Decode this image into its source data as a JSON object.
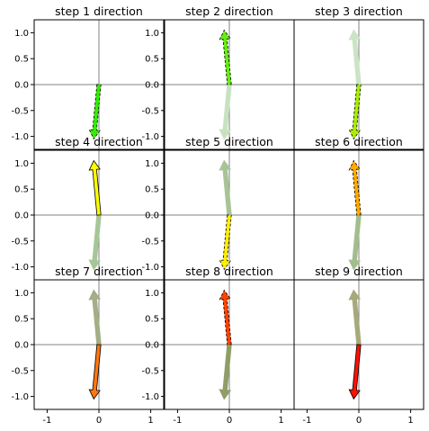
{
  "figure": {
    "background": "#ffffff",
    "grid": "3x3",
    "axis_line_color": "#808080",
    "frame_color": "#000000"
  },
  "chart_data": [
    {
      "type": "quiver",
      "title": "step 1 direction",
      "xlim": [
        -1.25,
        1.25
      ],
      "ylim": [
        -1.25,
        1.25
      ],
      "x_ticks": [],
      "y_ticks": [
        "-1.0",
        "-0.5",
        "0.0",
        "0.5",
        "1.0"
      ],
      "arrows": [
        {
          "role": "current",
          "x0": 0,
          "y0": 0,
          "dx": -0.1,
          "dy": -1.05,
          "color": "#33ee00",
          "edge_dashed": true
        }
      ]
    },
    {
      "type": "quiver",
      "title": "step 2 direction",
      "xlim": [
        -1.25,
        1.25
      ],
      "ylim": [
        -1.25,
        1.25
      ],
      "x_ticks": [],
      "y_ticks": [
        "-1.0",
        "-0.5",
        "0.0",
        "0.5",
        "1.0"
      ],
      "arrows": [
        {
          "role": "history",
          "x0": 0,
          "y0": 0,
          "dx": -0.1,
          "dy": -1.05,
          "color": "#c8e2c0"
        },
        {
          "role": "current",
          "x0": 0,
          "y0": 0,
          "dx": -0.1,
          "dy": 1.05,
          "color": "#66ee11",
          "edge_dashed": true
        }
      ]
    },
    {
      "type": "quiver",
      "title": "step 3 direction",
      "xlim": [
        -1.25,
        1.25
      ],
      "ylim": [
        -1.25,
        1.25
      ],
      "x_ticks": [],
      "y_ticks": [],
      "arrows": [
        {
          "role": "history",
          "x0": 0,
          "y0": 0,
          "dx": -0.1,
          "dy": 1.05,
          "color": "#cce4c6"
        },
        {
          "role": "current",
          "x0": 0,
          "y0": 0,
          "dx": -0.1,
          "dy": -1.05,
          "color": "#aaee00",
          "edge_dashed": true
        }
      ]
    },
    {
      "type": "quiver",
      "title": "step 4 direction",
      "xlim": [
        -1.25,
        1.25
      ],
      "ylim": [
        -1.25,
        1.25
      ],
      "x_ticks": [],
      "y_ticks": [
        "-1.0",
        "-0.5",
        "0.0",
        "0.5",
        "1.0"
      ],
      "arrows": [
        {
          "role": "history",
          "x0": 0,
          "y0": 0,
          "dx": -0.1,
          "dy": -1.05,
          "color": "#a6c698"
        },
        {
          "role": "current",
          "x0": 0,
          "y0": 0,
          "dx": -0.1,
          "dy": 1.05,
          "color": "#ffff00",
          "edge_dashed": false
        }
      ]
    },
    {
      "type": "quiver",
      "title": "step 5 direction",
      "xlim": [
        -1.25,
        1.25
      ],
      "ylim": [
        -1.25,
        1.25
      ],
      "x_ticks": [],
      "y_ticks": [
        "-1.0",
        "-0.5",
        "0.0",
        "0.5",
        "1.0"
      ],
      "arrows": [
        {
          "role": "history",
          "x0": 0,
          "y0": 0,
          "dx": -0.1,
          "dy": 1.05,
          "color": "#a8c496"
        },
        {
          "role": "current",
          "x0": 0,
          "y0": 0,
          "dx": -0.1,
          "dy": -1.05,
          "color": "#ffee00",
          "edge_dashed": true
        }
      ]
    },
    {
      "type": "quiver",
      "title": "step 6 direction",
      "xlim": [
        -1.25,
        1.25
      ],
      "ylim": [
        -1.25,
        1.25
      ],
      "x_ticks": [],
      "y_ticks": [],
      "arrows": [
        {
          "role": "history",
          "x0": 0,
          "y0": 0,
          "dx": -0.1,
          "dy": -1.05,
          "color": "#a2be8c"
        },
        {
          "role": "current",
          "x0": 0,
          "y0": 0,
          "dx": -0.1,
          "dy": 1.05,
          "color": "#ffaa00",
          "edge_dashed": true
        }
      ]
    },
    {
      "type": "quiver",
      "title": "step 7 direction",
      "xlim": [
        -1.25,
        1.25
      ],
      "ylim": [
        -1.25,
        1.25
      ],
      "x_ticks": [
        "-1",
        "0",
        "1"
      ],
      "y_ticks": [
        "-1.0",
        "-0.5",
        "0.0",
        "0.5",
        "1.0"
      ],
      "arrows": [
        {
          "role": "history",
          "x0": 0,
          "y0": 0,
          "dx": -0.1,
          "dy": 1.05,
          "color": "#a4ae86"
        },
        {
          "role": "current",
          "x0": 0,
          "y0": 0,
          "dx": -0.1,
          "dy": -1.05,
          "color": "#ff7711",
          "edge_dashed": false
        }
      ]
    },
    {
      "type": "quiver",
      "title": "step 8 direction",
      "xlim": [
        -1.25,
        1.25
      ],
      "ylim": [
        -1.25,
        1.25
      ],
      "x_ticks": [
        "-1",
        "0",
        "1"
      ],
      "y_ticks": [
        "-1.0",
        "-0.5",
        "0.0",
        "0.5",
        "1.0"
      ],
      "arrows": [
        {
          "role": "history",
          "x0": 0,
          "y0": 0,
          "dx": -0.1,
          "dy": -1.05,
          "color": "#8e9e66"
        },
        {
          "role": "current",
          "x0": 0,
          "y0": 0,
          "dx": -0.1,
          "dy": 1.05,
          "color": "#ff4400",
          "edge_dashed": true
        }
      ]
    },
    {
      "type": "quiver",
      "title": "step 9 direction",
      "xlim": [
        -1.25,
        1.25
      ],
      "ylim": [
        -1.25,
        1.25
      ],
      "x_ticks": [
        "-1",
        "0",
        "1"
      ],
      "y_ticks": [],
      "arrows": [
        {
          "role": "history",
          "x0": 0,
          "y0": 0,
          "dx": -0.1,
          "dy": 1.05,
          "color": "#a6aa7a"
        },
        {
          "role": "current",
          "x0": 0,
          "y0": 0,
          "dx": -0.1,
          "dy": -1.05,
          "color": "#ff1100",
          "edge_dashed": false
        }
      ]
    }
  ]
}
